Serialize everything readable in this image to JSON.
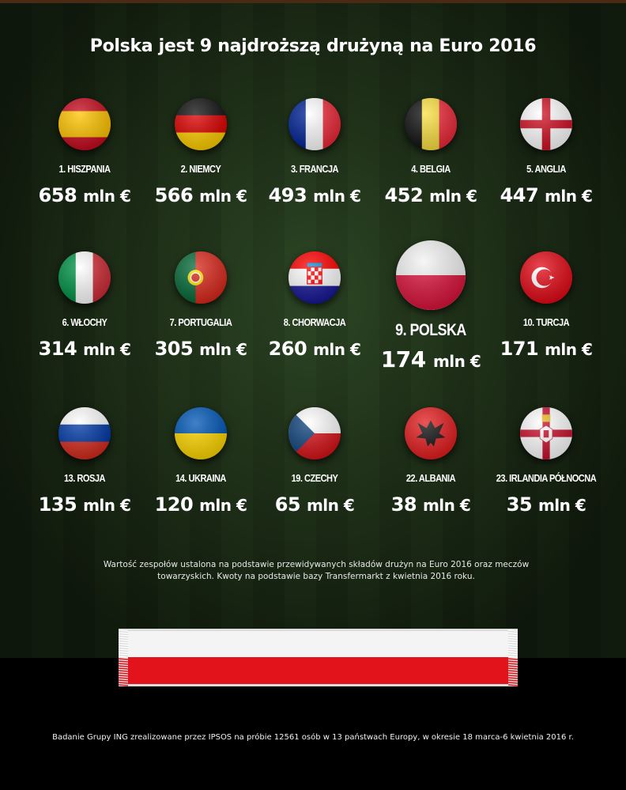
{
  "title": "Polska jest 9 najdroższą drużyną na Euro 2016",
  "teams": [
    {
      "label": "1. HISZPANIA",
      "value": "658",
      "unit": "mln €",
      "flag": "spain"
    },
    {
      "label": "2. NIEMCY",
      "value": "566",
      "unit": "mln €",
      "flag": "germany"
    },
    {
      "label": "3. FRANCJA",
      "value": "493",
      "unit": "mln €",
      "flag": "france"
    },
    {
      "label": "4. BELGIA",
      "value": "452",
      "unit": "mln €",
      "flag": "belgium"
    },
    {
      "label": "5. ANGLIA",
      "value": "447",
      "unit": "mln €",
      "flag": "england"
    },
    {
      "label": "6. WŁOCHY",
      "value": "314",
      "unit": "mln €",
      "flag": "italy"
    },
    {
      "label": "7. PORTUGALIA",
      "value": "305",
      "unit": "mln €",
      "flag": "portugal"
    },
    {
      "label": "8. CHORWACJA",
      "value": "260",
      "unit": "mln €",
      "flag": "croatia"
    },
    {
      "label": "9. POLSKA",
      "value": "174",
      "unit": "mln €",
      "flag": "poland",
      "highlight": true
    },
    {
      "label": "10. TURCJA",
      "value": "171",
      "unit": "mln €",
      "flag": "turkey"
    },
    {
      "label": "13. ROSJA",
      "value": "135",
      "unit": "mln €",
      "flag": "russia"
    },
    {
      "label": "14. UKRAINA",
      "value": "120",
      "unit": "mln €",
      "flag": "ukraine"
    },
    {
      "label": "19. CZECHY",
      "value": "65",
      "unit": "mln €",
      "flag": "czech"
    },
    {
      "label": "22. ALBANIA",
      "value": "38",
      "unit": "mln €",
      "flag": "albania"
    },
    {
      "label": "23. IRLANDIA PÓŁNOCNA",
      "value": "35",
      "unit": "mln €",
      "flag": "northern-ireland"
    }
  ],
  "note": "Wartość zespołów ustalona na podstawie przewidywanych składów drużyn na Euro 2016 oraz meczów towarzyskich. Kwoty na podstawie bazy Transfermarkt z kwietnia 2016 roku.",
  "footer": "Badanie Grupy ING zrealizowane przez IPSOS na próbie 12561 osób w 13 państwach Europy, w okresie 18 marca-6 kwietnia 2016 r.",
  "colors": {
    "poland_red": "#e3131b",
    "field": "#233a1c"
  }
}
